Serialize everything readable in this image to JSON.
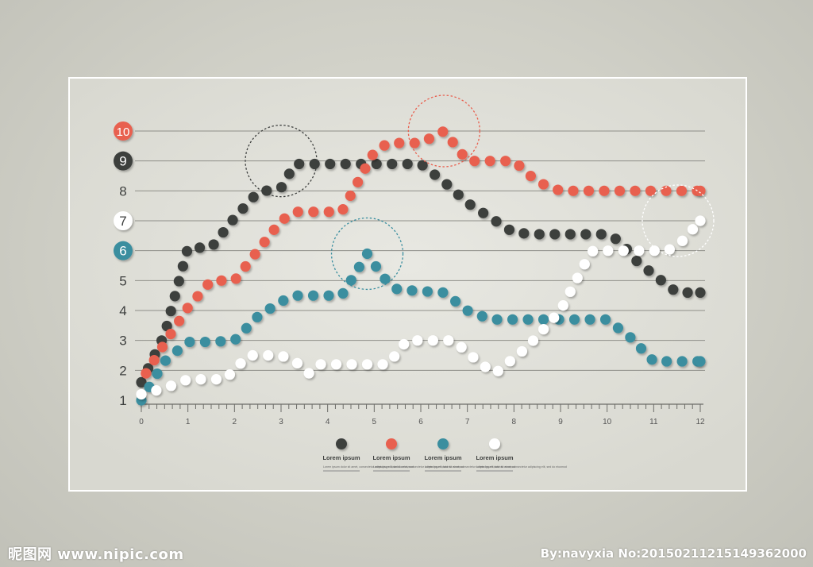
{
  "chart_data": {
    "type": "line",
    "title": "",
    "xlabel": "",
    "ylabel": "",
    "xlim": [
      0,
      12
    ],
    "ylim": [
      1,
      10
    ],
    "x_ticks": [
      "0",
      "1",
      "2",
      "3",
      "4",
      "5",
      "6",
      "7",
      "8",
      "9",
      "10",
      "11",
      "12"
    ],
    "y_ticks": [
      "1",
      "2",
      "3",
      "4",
      "5",
      "6",
      "7",
      "8",
      "9",
      "10"
    ],
    "grid": "horizontal",
    "series": [
      {
        "name": "Lorem ipsum",
        "color": "#3d3f3e",
        "points": [
          [
            0,
            1.6
          ],
          [
            0.5,
            3.2
          ],
          [
            1,
            6.1
          ],
          [
            1.5,
            6.1
          ],
          [
            2,
            7.1
          ],
          [
            2.5,
            7.95
          ],
          [
            3,
            8.1
          ],
          [
            3.3,
            8.9
          ],
          [
            4,
            8.9
          ],
          [
            4.5,
            8.9
          ],
          [
            5,
            8.9
          ],
          [
            6,
            8.9
          ],
          [
            6.5,
            8.3
          ],
          [
            7,
            7.6
          ],
          [
            7.5,
            7.1
          ],
          [
            8,
            6.6
          ],
          [
            8.5,
            6.55
          ],
          [
            9,
            6.55
          ],
          [
            10,
            6.55
          ],
          [
            10.3,
            6.3
          ],
          [
            10.6,
            5.7
          ],
          [
            11,
            5.2
          ],
          [
            11.5,
            4.6
          ],
          [
            12,
            4.6
          ]
        ]
      },
      {
        "name": "Lorem ipsum",
        "color": "#e8604f",
        "points": [
          [
            0.1,
            1.9
          ],
          [
            0.5,
            2.9
          ],
          [
            1,
            4.1
          ],
          [
            1.5,
            5.0
          ],
          [
            2,
            5.0
          ],
          [
            2.5,
            6.0
          ],
          [
            3,
            7.0
          ],
          [
            3.3,
            7.3
          ],
          [
            4,
            7.3
          ],
          [
            4.3,
            7.3
          ],
          [
            5,
            9.3
          ],
          [
            5.3,
            9.6
          ],
          [
            6,
            9.6
          ],
          [
            6.5,
            10.0
          ],
          [
            7,
            9.0
          ],
          [
            8,
            9.0
          ],
          [
            8.5,
            8.3
          ],
          [
            9,
            8.0
          ],
          [
            12,
            8.0
          ]
        ]
      },
      {
        "name": "Lorem ipsum",
        "color": "#3a8e9f",
        "points": [
          [
            0,
            1.0
          ],
          [
            0.5,
            2.3
          ],
          [
            1,
            2.95
          ],
          [
            1.5,
            2.95
          ],
          [
            2,
            3.0
          ],
          [
            2.5,
            3.8
          ],
          [
            3,
            4.3
          ],
          [
            3.3,
            4.5
          ],
          [
            4.3,
            4.5
          ],
          [
            4.5,
            5.0
          ],
          [
            4.85,
            5.9
          ],
          [
            5.2,
            5.1
          ],
          [
            5.5,
            4.7
          ],
          [
            6.5,
            4.6
          ],
          [
            7,
            4.0
          ],
          [
            7.5,
            3.7
          ],
          [
            8.6,
            3.7
          ],
          [
            9,
            3.7
          ],
          [
            10,
            3.7
          ],
          [
            10.5,
            3.1
          ],
          [
            11,
            2.3
          ],
          [
            12,
            2.3
          ]
        ]
      },
      {
        "name": "Lorem ipsum",
        "color": "#ffffff",
        "points": [
          [
            0,
            1.2
          ],
          [
            0.5,
            1.4
          ],
          [
            1,
            1.7
          ],
          [
            1.8,
            1.7
          ],
          [
            2.3,
            2.5
          ],
          [
            3,
            2.5
          ],
          [
            3.4,
            2.2
          ],
          [
            3.6,
            1.9
          ],
          [
            3.8,
            2.2
          ],
          [
            5.3,
            2.2
          ],
          [
            5.7,
            3.0
          ],
          [
            6.7,
            3.0
          ],
          [
            7.3,
            2.2
          ],
          [
            7.6,
            1.9
          ],
          [
            8.3,
            2.8
          ],
          [
            9,
            4.0
          ],
          [
            9.6,
            5.8
          ],
          [
            9.7,
            6.0
          ],
          [
            10.3,
            6.0
          ],
          [
            11.3,
            6.0
          ],
          [
            11.6,
            6.3
          ],
          [
            12,
            7.0
          ]
        ]
      }
    ],
    "y_badges": [
      {
        "label": "10",
        "value": 10,
        "color": "#e8604f",
        "text_color": "#ffffff"
      },
      {
        "label": "9",
        "value": 9,
        "color": "#3d3f3e",
        "text_color": "#ffffff"
      },
      {
        "label": "7",
        "value": 7,
        "color": "#ffffff",
        "text_color": "#3d3f3e"
      },
      {
        "label": "6",
        "value": 6,
        "color": "#3a8e9f",
        "text_color": "#ffffff"
      }
    ],
    "highlights": [
      {
        "x": 3.0,
        "y": 9.0,
        "color": "#3d3f3e"
      },
      {
        "x": 6.5,
        "y": 10.0,
        "color": "#e8604f"
      },
      {
        "x": 4.85,
        "y": 5.9,
        "color": "#3a8e9f"
      },
      {
        "x": 12.0,
        "y": 7.0,
        "color": "#ffffff"
      }
    ],
    "legend": {
      "placement": "bottom-center",
      "caption": "Lorem ipsum dolor sit amet, consectetur adipiscing elit, sed do eiusmod"
    }
  },
  "watermark": {
    "left": "昵图网 www.nipic.com",
    "right": "By:navyxia No:20150211215149362000"
  }
}
